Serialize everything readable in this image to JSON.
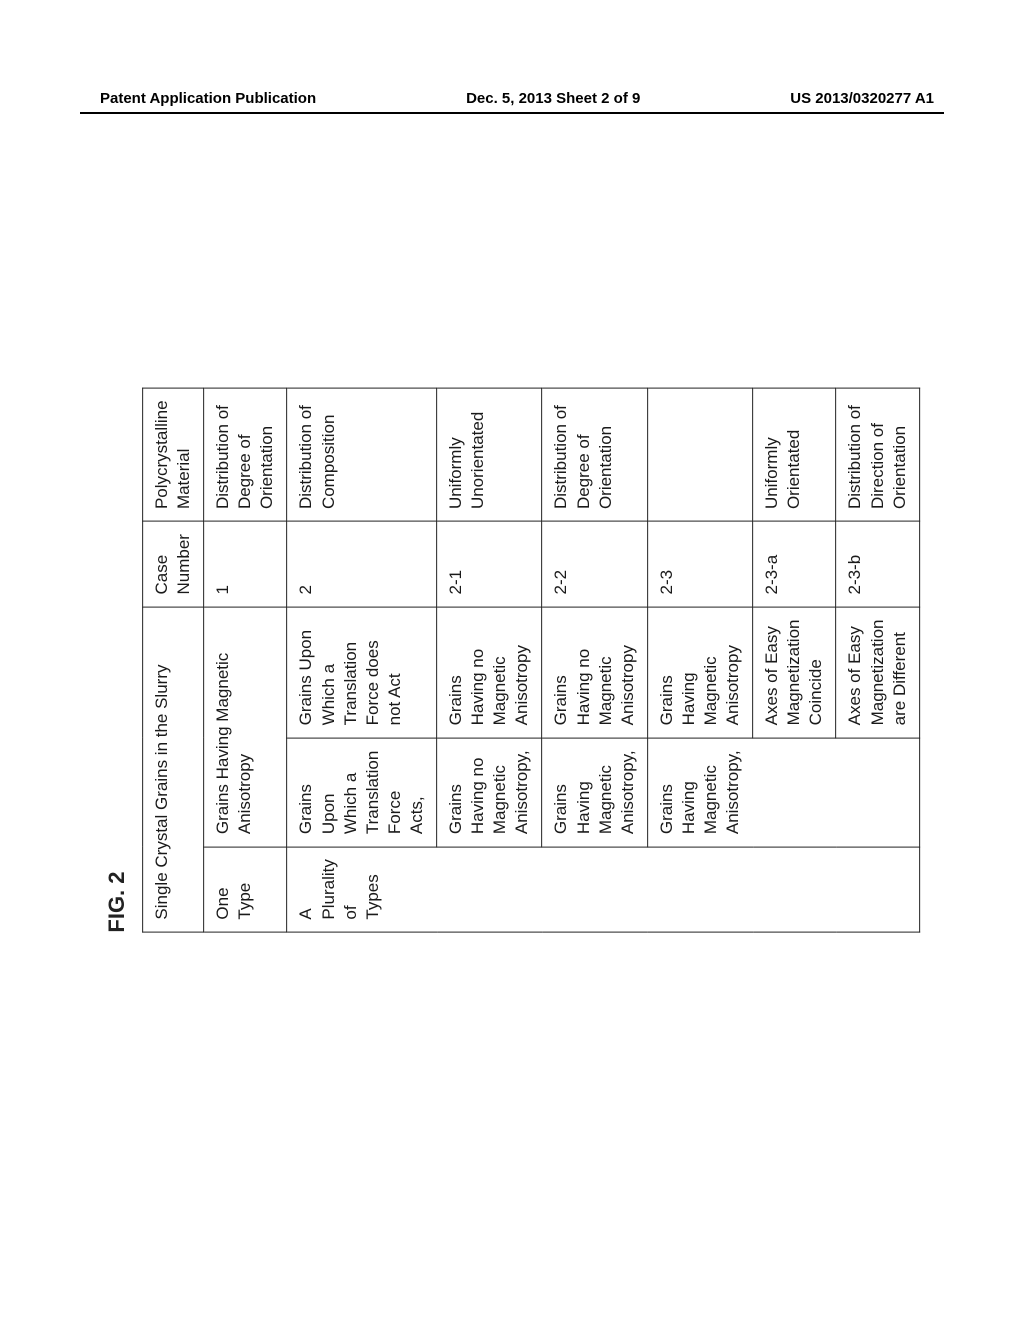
{
  "header": {
    "left": "Patent Application Publication",
    "center": "Dec. 5, 2013   Sheet 2 of 9",
    "right": "US 2013/0320277 A1"
  },
  "figure": {
    "label": "FIG. 2",
    "headers": {
      "grains_span": "Single Crystal Grains in the Slurry",
      "case_number": "Case Number",
      "poly": "Polycrystalline Material"
    },
    "row_one_type": {
      "type": "One Type",
      "grains": "Grains Having Magnetic Anisotropy",
      "case": "1",
      "poly": "Distribution of Degree of Orientation"
    },
    "row_plurality": {
      "type": "A Plurality of Types",
      "left": "Grains Upon Which a Translation Force Acts,",
      "right": "Grains Upon Which a Translation Force does not Act",
      "case": "2",
      "poly": "Distribution of Composition"
    },
    "row_2_1": {
      "left": "Grains Having no Magnetic Anisotropy,",
      "right": "Grains Having no Magnetic Anisotropy",
      "case": "2-1",
      "poly": "Uniformly Unorientated"
    },
    "row_2_2": {
      "left": "Grains Having Magnetic Anisotropy,",
      "right": "Grains Having no Magnetic Anisotropy",
      "case": "2-2",
      "poly": "Distribution of Degree of Orientation"
    },
    "row_2_3": {
      "left": "Grains Having Magnetic Anisotropy,",
      "right": "Grains Having Magnetic Anisotropy",
      "case": "2-3",
      "poly": ""
    },
    "row_2_3_a": {
      "right": "Axes of Easy Magnetization Coincide",
      "case": "2-3-a",
      "poly": "Uniformly Orientated"
    },
    "row_2_3_b": {
      "right": "Axes of Easy Magnetization are Different",
      "case": "2-3-b",
      "poly": "Distribution of Direction of Orientation"
    }
  }
}
